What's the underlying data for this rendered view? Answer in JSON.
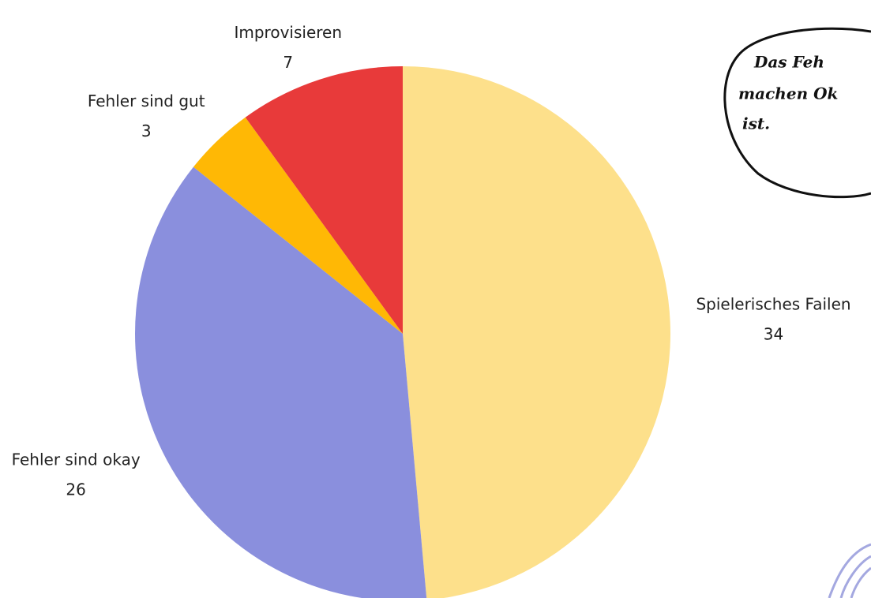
{
  "chart_data": {
    "type": "pie",
    "categories": [
      "Spielerisches Failen",
      "Fehler sind okay",
      "Fehler sind gut",
      "Improvisieren"
    ],
    "values": [
      34,
      26,
      3,
      7
    ],
    "colors": [
      "#fde08b",
      "#8a8fdd",
      "#ffb805",
      "#e83a3a"
    ],
    "annotations": [
      "Das Feh",
      "machen Ok",
      "ist."
    ]
  }
}
